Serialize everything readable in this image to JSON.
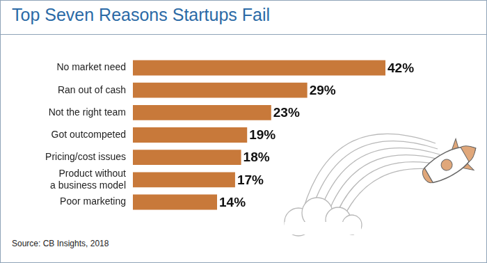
{
  "chart_data": {
    "type": "bar",
    "orientation": "horizontal",
    "title": "Top Seven Reasons Startups Fail",
    "source": "Source: CB Insights, 2018",
    "categories": [
      "No market need",
      "Ran out of cash",
      "Not the right team",
      "Got outcompeted",
      "Pricing/cost issues",
      "Product without a business model",
      "Poor marketing"
    ],
    "values": [
      42,
      29,
      23,
      19,
      18,
      17,
      14
    ],
    "value_labels": [
      "42%",
      "29%",
      "23%",
      "19%",
      "18%",
      "17%",
      "14%"
    ],
    "color": "#c8793a",
    "xlim": [
      0,
      42
    ],
    "grid": false,
    "data_labels": true,
    "tick_labels": "y"
  }
}
